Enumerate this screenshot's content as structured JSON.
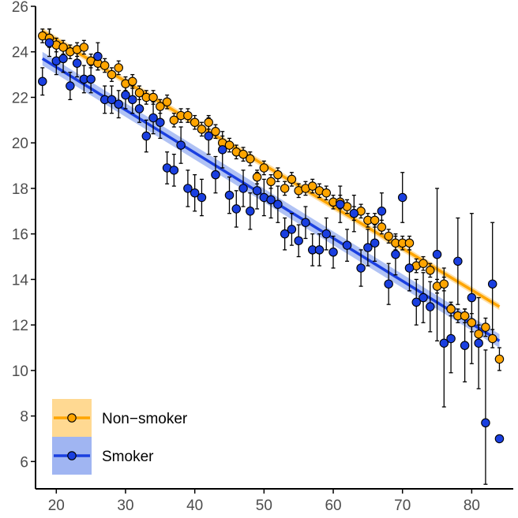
{
  "chart_data": {
    "type": "scatter",
    "title": "",
    "xlabel": "",
    "ylabel": "",
    "xlim": [
      17,
      86
    ],
    "ylim": [
      4.8,
      26
    ],
    "xticks": [
      20,
      30,
      40,
      50,
      60,
      70,
      80
    ],
    "yticks": [
      6,
      8,
      10,
      12,
      14,
      16,
      18,
      20,
      22,
      24,
      26
    ],
    "grid": false,
    "legend_position": "bottom-left",
    "series": [
      {
        "name": "Non−smoker",
        "color": "#FFA500",
        "band_color": "#FFD27F",
        "fit": {
          "x": [
            18,
            84
          ],
          "y": [
            24.9,
            12.8
          ],
          "band_halfwidth": 0.15
        },
        "points": [
          {
            "x": 18,
            "y": 24.7,
            "lo": 24.4,
            "hi": 25.0
          },
          {
            "x": 19,
            "y": 24.6,
            "lo": 24.2,
            "hi": 25.0
          },
          {
            "x": 20,
            "y": 24.3,
            "lo": 24.0,
            "hi": 24.6
          },
          {
            "x": 21,
            "y": 24.2,
            "lo": 23.9,
            "hi": 24.5
          },
          {
            "x": 22,
            "y": 24.0,
            "lo": 23.7,
            "hi": 24.3
          },
          {
            "x": 23,
            "y": 24.1,
            "lo": 23.8,
            "hi": 24.4
          },
          {
            "x": 24,
            "y": 24.2,
            "lo": 23.9,
            "hi": 24.5
          },
          {
            "x": 25,
            "y": 23.6,
            "lo": 23.3,
            "hi": 23.9
          },
          {
            "x": 26,
            "y": 23.5,
            "lo": 23.2,
            "hi": 23.8
          },
          {
            "x": 27,
            "y": 23.4,
            "lo": 23.1,
            "hi": 23.7
          },
          {
            "x": 28,
            "y": 23.0,
            "lo": 22.7,
            "hi": 23.3
          },
          {
            "x": 29,
            "y": 23.3,
            "lo": 23.0,
            "hi": 23.6
          },
          {
            "x": 30,
            "y": 22.6,
            "lo": 22.3,
            "hi": 22.9
          },
          {
            "x": 31,
            "y": 22.7,
            "lo": 22.4,
            "hi": 23.0
          },
          {
            "x": 32,
            "y": 22.2,
            "lo": 21.9,
            "hi": 22.5
          },
          {
            "x": 33,
            "y": 22.0,
            "lo": 21.7,
            "hi": 22.3
          },
          {
            "x": 34,
            "y": 22.0,
            "lo": 21.7,
            "hi": 22.3
          },
          {
            "x": 35,
            "y": 21.6,
            "lo": 21.3,
            "hi": 21.9
          },
          {
            "x": 36,
            "y": 21.8,
            "lo": 21.5,
            "hi": 22.1
          },
          {
            "x": 37,
            "y": 21.0,
            "lo": 20.7,
            "hi": 21.3
          },
          {
            "x": 38,
            "y": 21.2,
            "lo": 20.9,
            "hi": 21.5
          },
          {
            "x": 39,
            "y": 21.2,
            "lo": 20.9,
            "hi": 21.5
          },
          {
            "x": 40,
            "y": 20.9,
            "lo": 20.6,
            "hi": 21.2
          },
          {
            "x": 41,
            "y": 20.6,
            "lo": 20.3,
            "hi": 20.9
          },
          {
            "x": 42,
            "y": 20.9,
            "lo": 20.6,
            "hi": 21.2
          },
          {
            "x": 43,
            "y": 20.5,
            "lo": 20.2,
            "hi": 20.8
          },
          {
            "x": 44,
            "y": 20.0,
            "lo": 19.7,
            "hi": 20.3
          },
          {
            "x": 45,
            "y": 19.9,
            "lo": 19.6,
            "hi": 20.2
          },
          {
            "x": 46,
            "y": 19.6,
            "lo": 19.3,
            "hi": 19.9
          },
          {
            "x": 47,
            "y": 19.5,
            "lo": 19.2,
            "hi": 19.8
          },
          {
            "x": 48,
            "y": 19.3,
            "lo": 19.0,
            "hi": 19.6
          },
          {
            "x": 49,
            "y": 18.5,
            "lo": 18.2,
            "hi": 18.8
          },
          {
            "x": 50,
            "y": 18.9,
            "lo": 18.6,
            "hi": 19.2
          },
          {
            "x": 51,
            "y": 18.3,
            "lo": 18.0,
            "hi": 18.6
          },
          {
            "x": 52,
            "y": 18.6,
            "lo": 18.3,
            "hi": 18.9
          },
          {
            "x": 53,
            "y": 18.0,
            "lo": 17.7,
            "hi": 18.3
          },
          {
            "x": 54,
            "y": 18.4,
            "lo": 18.1,
            "hi": 18.7
          },
          {
            "x": 55,
            "y": 17.9,
            "lo": 17.6,
            "hi": 18.2
          },
          {
            "x": 56,
            "y": 18.0,
            "lo": 17.7,
            "hi": 18.3
          },
          {
            "x": 57,
            "y": 18.1,
            "lo": 17.8,
            "hi": 18.4
          },
          {
            "x": 58,
            "y": 17.9,
            "lo": 17.6,
            "hi": 18.2
          },
          {
            "x": 59,
            "y": 17.8,
            "lo": 17.5,
            "hi": 18.1
          },
          {
            "x": 60,
            "y": 17.4,
            "lo": 17.1,
            "hi": 17.7
          },
          {
            "x": 61,
            "y": 17.4,
            "lo": 17.1,
            "hi": 17.7
          },
          {
            "x": 62,
            "y": 17.2,
            "lo": 16.9,
            "hi": 17.5
          },
          {
            "x": 63,
            "y": 16.9,
            "lo": 16.6,
            "hi": 17.2
          },
          {
            "x": 64,
            "y": 17.0,
            "lo": 16.7,
            "hi": 17.3
          },
          {
            "x": 65,
            "y": 16.6,
            "lo": 16.3,
            "hi": 16.9
          },
          {
            "x": 66,
            "y": 16.6,
            "lo": 16.3,
            "hi": 16.9
          },
          {
            "x": 67,
            "y": 16.3,
            "lo": 16.0,
            "hi": 16.6
          },
          {
            "x": 68,
            "y": 15.9,
            "lo": 15.6,
            "hi": 16.2
          },
          {
            "x": 69,
            "y": 15.6,
            "lo": 15.3,
            "hi": 15.9
          },
          {
            "x": 70,
            "y": 15.6,
            "lo": 15.3,
            "hi": 15.9
          },
          {
            "x": 71,
            "y": 15.6,
            "lo": 15.3,
            "hi": 15.9
          },
          {
            "x": 72,
            "y": 14.6,
            "lo": 14.3,
            "hi": 14.9
          },
          {
            "x": 73,
            "y": 14.7,
            "lo": 14.4,
            "hi": 15.0
          },
          {
            "x": 74,
            "y": 14.4,
            "lo": 14.1,
            "hi": 14.7
          },
          {
            "x": 75,
            "y": 13.7,
            "lo": 13.4,
            "hi": 14.0
          },
          {
            "x": 76,
            "y": 13.8,
            "lo": 13.5,
            "hi": 14.1
          },
          {
            "x": 77,
            "y": 12.7,
            "lo": 12.4,
            "hi": 13.0
          },
          {
            "x": 78,
            "y": 12.4,
            "lo": 12.1,
            "hi": 12.7
          },
          {
            "x": 79,
            "y": 12.4,
            "lo": 12.1,
            "hi": 12.7
          },
          {
            "x": 80,
            "y": 12.1,
            "lo": 11.7,
            "hi": 12.5
          },
          {
            "x": 81,
            "y": 11.6,
            "lo": 11.2,
            "hi": 12.0
          },
          {
            "x": 82,
            "y": 11.9,
            "lo": 11.5,
            "hi": 12.3
          },
          {
            "x": 83,
            "y": 11.4,
            "lo": 11.0,
            "hi": 11.8
          },
          {
            "x": 84,
            "y": 10.5,
            "lo": 10.0,
            "hi": 11.0
          }
        ]
      },
      {
        "name": "Smoker",
        "color": "#1A3FE0",
        "band_color": "#8FA8F0",
        "fit": {
          "x": [
            18,
            84
          ],
          "y": [
            23.7,
            11.3
          ],
          "band_halfwidth": 0.3
        },
        "points": [
          {
            "x": 18,
            "y": 22.7,
            "lo": 22.1,
            "hi": 23.3
          },
          {
            "x": 19,
            "y": 24.4,
            "lo": 23.8,
            "hi": 25.0
          },
          {
            "x": 20,
            "y": 23.6,
            "lo": 23.0,
            "hi": 24.2
          },
          {
            "x": 21,
            "y": 23.7,
            "lo": 23.1,
            "hi": 24.3
          },
          {
            "x": 22,
            "y": 22.5,
            "lo": 21.9,
            "hi": 23.1
          },
          {
            "x": 23,
            "y": 23.5,
            "lo": 22.9,
            "hi": 24.1
          },
          {
            "x": 24,
            "y": 22.8,
            "lo": 22.2,
            "hi": 23.4
          },
          {
            "x": 25,
            "y": 22.8,
            "lo": 22.2,
            "hi": 23.4
          },
          {
            "x": 26,
            "y": 23.8,
            "lo": 23.2,
            "hi": 24.4
          },
          {
            "x": 27,
            "y": 21.9,
            "lo": 21.3,
            "hi": 22.5
          },
          {
            "x": 28,
            "y": 21.9,
            "lo": 21.3,
            "hi": 22.5
          },
          {
            "x": 29,
            "y": 21.7,
            "lo": 21.1,
            "hi": 22.3
          },
          {
            "x": 30,
            "y": 22.1,
            "lo": 21.5,
            "hi": 22.7
          },
          {
            "x": 31,
            "y": 21.9,
            "lo": 21.3,
            "hi": 22.5
          },
          {
            "x": 32,
            "y": 21.5,
            "lo": 20.9,
            "hi": 22.1
          },
          {
            "x": 33,
            "y": 20.3,
            "lo": 19.6,
            "hi": 21.0
          },
          {
            "x": 34,
            "y": 21.1,
            "lo": 20.4,
            "hi": 21.8
          },
          {
            "x": 35,
            "y": 20.9,
            "lo": 20.2,
            "hi": 21.6
          },
          {
            "x": 36,
            "y": 18.9,
            "lo": 18.2,
            "hi": 19.6
          },
          {
            "x": 37,
            "y": 18.8,
            "lo": 18.1,
            "hi": 19.5
          },
          {
            "x": 38,
            "y": 19.9,
            "lo": 19.1,
            "hi": 20.7
          },
          {
            "x": 39,
            "y": 18.0,
            "lo": 17.2,
            "hi": 18.8
          },
          {
            "x": 40,
            "y": 17.8,
            "lo": 17.0,
            "hi": 18.6
          },
          {
            "x": 41,
            "y": 17.6,
            "lo": 16.8,
            "hi": 18.4
          },
          {
            "x": 42,
            "y": 20.3,
            "lo": 19.5,
            "hi": 21.1
          },
          {
            "x": 43,
            "y": 18.6,
            "lo": 17.8,
            "hi": 19.4
          },
          {
            "x": 44,
            "y": 19.7,
            "lo": 18.9,
            "hi": 20.5
          },
          {
            "x": 45,
            "y": 17.7,
            "lo": 16.9,
            "hi": 18.5
          },
          {
            "x": 46,
            "y": 17.1,
            "lo": 16.3,
            "hi": 17.9
          },
          {
            "x": 47,
            "y": 18.0,
            "lo": 17.2,
            "hi": 18.8
          },
          {
            "x": 48,
            "y": 17.0,
            "lo": 16.2,
            "hi": 17.8
          },
          {
            "x": 49,
            "y": 17.9,
            "lo": 17.1,
            "hi": 18.7
          },
          {
            "x": 50,
            "y": 17.6,
            "lo": 16.8,
            "hi": 18.4
          },
          {
            "x": 51,
            "y": 17.5,
            "lo": 16.7,
            "hi": 18.3
          },
          {
            "x": 52,
            "y": 17.3,
            "lo": 16.5,
            "hi": 18.1
          },
          {
            "x": 53,
            "y": 16.0,
            "lo": 15.3,
            "hi": 16.7
          },
          {
            "x": 54,
            "y": 16.2,
            "lo": 15.5,
            "hi": 16.9
          },
          {
            "x": 55,
            "y": 15.7,
            "lo": 15.0,
            "hi": 16.4
          },
          {
            "x": 56,
            "y": 16.5,
            "lo": 15.8,
            "hi": 17.2
          },
          {
            "x": 57,
            "y": 15.3,
            "lo": 14.6,
            "hi": 16.0
          },
          {
            "x": 58,
            "y": 15.3,
            "lo": 14.6,
            "hi": 16.0
          },
          {
            "x": 59,
            "y": 16.0,
            "lo": 15.3,
            "hi": 16.7
          },
          {
            "x": 60,
            "y": 15.2,
            "lo": 14.5,
            "hi": 15.9
          },
          {
            "x": 61,
            "y": 17.3,
            "lo": 16.5,
            "hi": 18.1
          },
          {
            "x": 62,
            "y": 15.5,
            "lo": 14.8,
            "hi": 16.2
          },
          {
            "x": 63,
            "y": 16.9,
            "lo": 16.1,
            "hi": 17.7
          },
          {
            "x": 64,
            "y": 14.5,
            "lo": 13.7,
            "hi": 15.3
          },
          {
            "x": 65,
            "y": 15.4,
            "lo": 14.6,
            "hi": 16.2
          },
          {
            "x": 66,
            "y": 15.6,
            "lo": 14.8,
            "hi": 16.4
          },
          {
            "x": 67,
            "y": 17.0,
            "lo": 16.2,
            "hi": 17.8
          },
          {
            "x": 68,
            "y": 13.8,
            "lo": 12.9,
            "hi": 14.7
          },
          {
            "x": 69,
            "y": 15.1,
            "lo": 14.2,
            "hi": 16.0
          },
          {
            "x": 70,
            "y": 17.6,
            "lo": 16.5,
            "hi": 18.7
          },
          {
            "x": 71,
            "y": 14.5,
            "lo": 13.5,
            "hi": 15.5
          },
          {
            "x": 72,
            "y": 13.0,
            "lo": 12.0,
            "hi": 14.0
          },
          {
            "x": 73,
            "y": 13.2,
            "lo": 12.1,
            "hi": 14.3
          },
          {
            "x": 74,
            "y": 12.8,
            "lo": 11.7,
            "hi": 13.9
          },
          {
            "x": 75,
            "y": 15.1,
            "lo": 11.3,
            "hi": 18.0
          },
          {
            "x": 76,
            "y": 11.2,
            "lo": 8.4,
            "hi": 14.5
          },
          {
            "x": 77,
            "y": 11.4,
            "lo": 9.9,
            "hi": 12.9
          },
          {
            "x": 78,
            "y": 14.8,
            "lo": 12.9,
            "hi": 16.7
          },
          {
            "x": 79,
            "y": 11.1,
            "lo": 9.5,
            "hi": 12.7
          },
          {
            "x": 80,
            "y": 13.2,
            "lo": 10.3,
            "hi": 16.9
          },
          {
            "x": 81,
            "y": 11.2,
            "lo": 9.2,
            "hi": 13.2
          },
          {
            "x": 82,
            "y": 7.7,
            "lo": 5.0,
            "hi": 10.9
          },
          {
            "x": 83,
            "y": 13.8,
            "lo": 11.4,
            "hi": 16.5
          },
          {
            "x": 84,
            "y": 7.0,
            "lo": 7.0,
            "hi": 7.0
          }
        ]
      }
    ]
  }
}
